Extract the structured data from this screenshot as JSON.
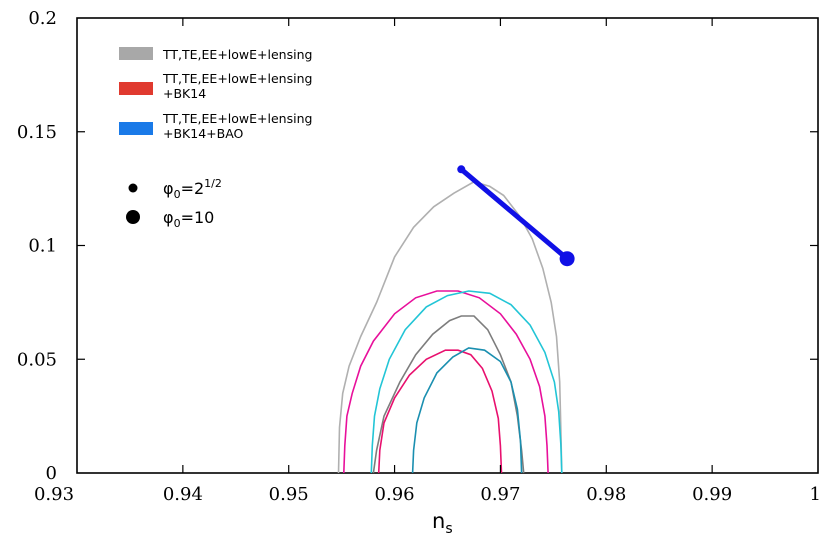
{
  "chart_data": {
    "type": "contour",
    "xlabel": "n",
    "xlabel_subscript": "s",
    "ylabel": "",
    "xlim": [
      0.93,
      1.0
    ],
    "ylim": [
      0,
      0.2
    ],
    "xticks": [
      0.93,
      0.94,
      0.95,
      0.96,
      0.97,
      0.98,
      0.99,
      1.0
    ],
    "xtick_labels": [
      "0.93",
      "0.94",
      "0.95",
      "0.96",
      "0.97",
      "0.98",
      "0.99",
      "1"
    ],
    "yticks": [
      0,
      0.05,
      0.1,
      0.15,
      0.2
    ],
    "ytick_labels": [
      "0",
      "0.05",
      "0.1",
      "0.15",
      "0.2"
    ],
    "grid": false,
    "legend_position": "top-left",
    "legend": [
      {
        "label": "TT,TE,EE+lowE+lensing",
        "color": "#a8a8a8"
      },
      {
        "label": "TT,TE,EE+lowE+lensing",
        "label_line2": "+BK14",
        "color": "#e03a2f"
      },
      {
        "label": "TT,TE,EE+lowE+lensing",
        "label_line2": "+BK14+BAO",
        "color": "#1a7ae8"
      }
    ],
    "markers_legend": [
      {
        "label": "φ",
        "label_subscript": "0",
        "label_value": "=2",
        "label_superscript": "1/2",
        "size": "small"
      },
      {
        "label": "φ",
        "label_subscript": "0",
        "label_value": "=10",
        "size": "large"
      }
    ],
    "contours": [
      {
        "name": "TT,TE,EE+lowE+lensing 95%",
        "color": "#b0b0b0",
        "points": [
          [
            0.9547,
            0
          ],
          [
            0.9548,
            0.02
          ],
          [
            0.9551,
            0.035
          ],
          [
            0.9557,
            0.047
          ],
          [
            0.9568,
            0.06
          ],
          [
            0.9583,
            0.075
          ],
          [
            0.96,
            0.095
          ],
          [
            0.9618,
            0.108
          ],
          [
            0.9637,
            0.117
          ],
          [
            0.9656,
            0.123
          ],
          [
            0.9675,
            0.128
          ],
          [
            0.969,
            0.126
          ],
          [
            0.9703,
            0.122
          ],
          [
            0.9718,
            0.113
          ],
          [
            0.973,
            0.103
          ],
          [
            0.974,
            0.09
          ],
          [
            0.9748,
            0.075
          ],
          [
            0.9753,
            0.06
          ],
          [
            0.9756,
            0.04
          ],
          [
            0.9757,
            0.02
          ],
          [
            0.9758,
            0
          ]
        ]
      },
      {
        "name": "TT,TE,EE+lowE+lensing 68%",
        "color": "#7d7d7d",
        "points": [
          [
            0.958,
            0
          ],
          [
            0.9583,
            0.01
          ],
          [
            0.959,
            0.025
          ],
          [
            0.9605,
            0.04
          ],
          [
            0.962,
            0.052
          ],
          [
            0.9636,
            0.061
          ],
          [
            0.9652,
            0.067
          ],
          [
            0.9663,
            0.069
          ],
          [
            0.9675,
            0.069
          ],
          [
            0.9688,
            0.063
          ],
          [
            0.97,
            0.052
          ],
          [
            0.971,
            0.04
          ],
          [
            0.9716,
            0.025
          ],
          [
            0.972,
            0.01
          ],
          [
            0.9722,
            0
          ]
        ]
      },
      {
        "name": "+BK14 95%",
        "color": "#e8109b",
        "points": [
          [
            0.9552,
            0
          ],
          [
            0.9553,
            0.012
          ],
          [
            0.9555,
            0.025
          ],
          [
            0.956,
            0.035
          ],
          [
            0.9568,
            0.047
          ],
          [
            0.958,
            0.058
          ],
          [
            0.96,
            0.07
          ],
          [
            0.962,
            0.077
          ],
          [
            0.964,
            0.08
          ],
          [
            0.966,
            0.08
          ],
          [
            0.968,
            0.077
          ],
          [
            0.97,
            0.07
          ],
          [
            0.9715,
            0.061
          ],
          [
            0.9728,
            0.05
          ],
          [
            0.9737,
            0.038
          ],
          [
            0.9742,
            0.025
          ],
          [
            0.9744,
            0.012
          ],
          [
            0.9745,
            0
          ]
        ]
      },
      {
        "name": "+BK14 68%",
        "color": "#e8106e",
        "points": [
          [
            0.9585,
            0
          ],
          [
            0.9586,
            0.01
          ],
          [
            0.959,
            0.022
          ],
          [
            0.96,
            0.033
          ],
          [
            0.9614,
            0.043
          ],
          [
            0.963,
            0.05
          ],
          [
            0.9648,
            0.054
          ],
          [
            0.966,
            0.054
          ],
          [
            0.9672,
            0.052
          ],
          [
            0.9683,
            0.046
          ],
          [
            0.9692,
            0.036
          ],
          [
            0.9698,
            0.024
          ],
          [
            0.97,
            0.012
          ],
          [
            0.9701,
            0
          ]
        ]
      },
      {
        "name": "+BK14+BAO 95%",
        "color": "#22c5d6",
        "points": [
          [
            0.9578,
            0
          ],
          [
            0.9579,
            0.012
          ],
          [
            0.9581,
            0.025
          ],
          [
            0.9586,
            0.037
          ],
          [
            0.9595,
            0.05
          ],
          [
            0.961,
            0.063
          ],
          [
            0.963,
            0.073
          ],
          [
            0.965,
            0.078
          ],
          [
            0.967,
            0.08
          ],
          [
            0.969,
            0.079
          ],
          [
            0.971,
            0.074
          ],
          [
            0.9728,
            0.065
          ],
          [
            0.9742,
            0.053
          ],
          [
            0.9751,
            0.04
          ],
          [
            0.9755,
            0.027
          ],
          [
            0.9757,
            0.013
          ],
          [
            0.9758,
            0
          ]
        ]
      },
      {
        "name": "+BK14+BAO 68%",
        "color": "#1a8fb0",
        "points": [
          [
            0.9617,
            0
          ],
          [
            0.9618,
            0.01
          ],
          [
            0.9621,
            0.022
          ],
          [
            0.9628,
            0.033
          ],
          [
            0.964,
            0.044
          ],
          [
            0.9655,
            0.051
          ],
          [
            0.967,
            0.055
          ],
          [
            0.9685,
            0.054
          ],
          [
            0.97,
            0.049
          ],
          [
            0.971,
            0.04
          ],
          [
            0.9716,
            0.028
          ],
          [
            0.9719,
            0.014
          ],
          [
            0.972,
            0
          ]
        ]
      }
    ],
    "prediction_line": {
      "color": "#1010e6",
      "start": [
        0.9663,
        0.1335
      ],
      "end": [
        0.9763,
        0.0942
      ]
    }
  }
}
